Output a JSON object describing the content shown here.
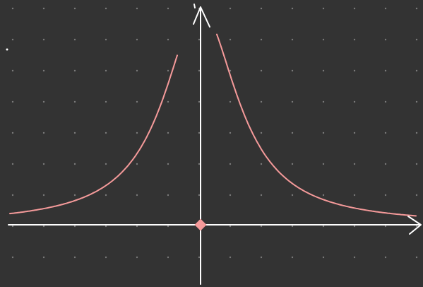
{
  "canvas": {
    "background": "#333333",
    "dot_color": "#7a7a7a"
  },
  "axes": {
    "color": "#ffffff",
    "x_arrow_icon": "arrow-right-icon",
    "y_arrow_icon": "arrow-up-icon"
  },
  "curve": {
    "color": "#f59a9a",
    "description_values": {
      "left_branch": [
        [
          -8,
          0.06
        ],
        [
          -6,
          0.11
        ],
        [
          -4,
          0.25
        ],
        [
          -2,
          1.0
        ],
        [
          -1,
          4.0
        ],
        [
          -0.8,
          6.25
        ]
      ],
      "right_branch": [
        [
          0.8,
          6.25
        ],
        [
          1,
          4.0
        ],
        [
          2,
          1.0
        ],
        [
          4,
          0.25
        ],
        [
          6,
          0.11
        ],
        [
          8,
          0.06
        ]
      ]
    }
  },
  "origin_marker": {
    "color": "#f59a9a",
    "icon": "diamond-icon"
  }
}
